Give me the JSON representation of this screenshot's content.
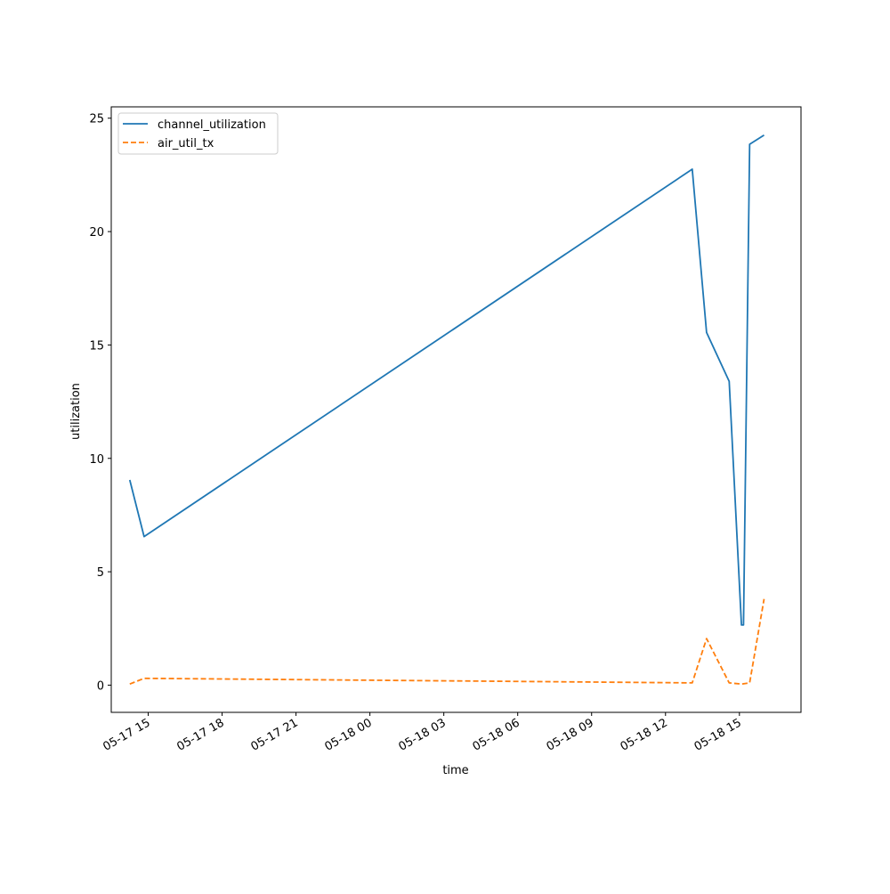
{
  "chart_data": {
    "type": "line",
    "title": "",
    "xlabel": "time",
    "ylabel": "utilization",
    "x_tick_labels": [
      "05-17 15",
      "05-17 18",
      "05-17 21",
      "05-18 00",
      "05-18 03",
      "05-18 06",
      "05-18 09",
      "05-18 12",
      "05-18 15"
    ],
    "x_ticks": [
      "2024-05-17 15:00",
      "2024-05-17 18:00",
      "2024-05-17 21:00",
      "2024-05-18 00:00",
      "2024-05-18 03:00",
      "2024-05-18 06:00",
      "2024-05-18 09:00",
      "2024-05-18 12:00",
      "2024-05-18 15:00"
    ],
    "y_ticks": [
      0,
      5,
      10,
      15,
      20,
      25
    ],
    "xlim": [
      "2024-05-17 13:30",
      "2024-05-18 17:30"
    ],
    "ylim": [
      -1.2,
      25.5
    ],
    "legend_position": "top-left",
    "grid": false,
    "series": [
      {
        "name": "channel_utilization",
        "color": "#1f77b4",
        "style": "solid",
        "x": [
          "2024-05-17 14:15",
          "2024-05-17 14:50",
          "2024-05-18 13:05",
          "2024-05-18 13:40",
          "2024-05-18 14:35",
          "2024-05-18 15:05",
          "2024-05-18 15:10",
          "2024-05-18 15:25",
          "2024-05-18 16:00"
        ],
        "values": [
          9.05,
          6.55,
          22.75,
          15.55,
          13.4,
          2.65,
          2.65,
          23.85,
          24.25
        ]
      },
      {
        "name": "air_util_tx",
        "color": "#ff7f0e",
        "style": "dashed",
        "x": [
          "2024-05-17 14:15",
          "2024-05-17 14:50",
          "2024-05-18 13:05",
          "2024-05-18 13:40",
          "2024-05-18 14:35",
          "2024-05-18 15:05",
          "2024-05-18 15:25",
          "2024-05-18 16:00"
        ],
        "values": [
          0.05,
          0.3,
          0.1,
          2.05,
          0.1,
          0.05,
          0.1,
          3.8
        ]
      }
    ]
  }
}
